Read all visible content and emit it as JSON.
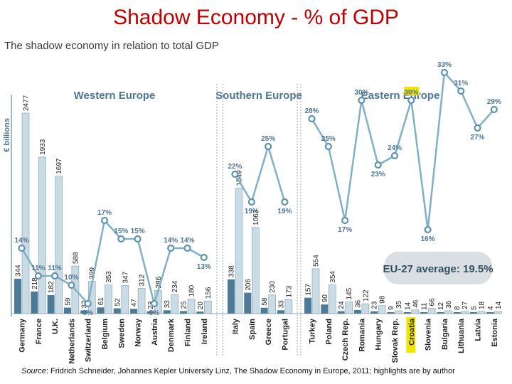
{
  "slide_title": "Shadow Economy - % of GDP",
  "chart_title": "The shadow economy in relation to total GDP",
  "source": {
    "label": "Source",
    "text": ": Fridrich Schneider, Johannes Kepler University Linz, The Shadow Economy in Europe, 2011; highlights are by author"
  },
  "colors": {
    "bar_light": "#c9dce6",
    "bar_dark": "#4d7a96",
    "line": "#7fb0c8",
    "highlight": "#f2e600",
    "header": "#4d7792"
  },
  "chart_data": {
    "type": "bar",
    "title": "The shadow economy in relation to total GDP",
    "ylabel": "€ billions",
    "eu_average_label": "EU-27 average: 19.5%",
    "highlight_country": "Croatia",
    "regions": [
      {
        "name": "Western Europe",
        "countries": [
          {
            "name": "Germany",
            "gdp": 2477,
            "shadow": 344,
            "pct": 14
          },
          {
            "name": "France",
            "gdp": 1933,
            "shadow": 218,
            "pct": 11
          },
          {
            "name": "U.K.",
            "gdp": 1697,
            "shadow": 182,
            "pct": 11
          },
          {
            "name": "Netherlands",
            "gdp": 588,
            "shadow": 59,
            "pct": 10
          },
          {
            "name": "Switzerland",
            "gdp": 399,
            "shadow": 32,
            "pct": 8
          },
          {
            "name": "Belgium",
            "gdp": 353,
            "shadow": 61,
            "pct": 17
          },
          {
            "name": "Sweden",
            "gdp": 347,
            "shadow": 52,
            "pct": 15
          },
          {
            "name": "Norway",
            "gdp": 312,
            "shadow": 47,
            "pct": 15
          },
          {
            "name": "Austria",
            "gdp": 286,
            "shadow": 23,
            "pct": 8
          },
          {
            "name": "Denmark",
            "gdp": 234,
            "shadow": 33,
            "pct": 14
          },
          {
            "name": "Finland",
            "gdp": 180,
            "shadow": 25,
            "pct": 14
          },
          {
            "name": "Ireland",
            "gdp": 156,
            "shadow": 20,
            "pct": 13
          }
        ]
      },
      {
        "name": "Southern Europe",
        "countries": [
          {
            "name": "Italy",
            "gdp": 1549,
            "shadow": 338,
            "pct": 22
          },
          {
            "name": "Spain",
            "gdp": 1063,
            "shadow": 206,
            "pct": 19
          },
          {
            "name": "Greece",
            "gdp": 230,
            "shadow": 58,
            "pct": 25
          },
          {
            "name": "Portugal",
            "gdp": 173,
            "shadow": 33,
            "pct": 19
          }
        ]
      },
      {
        "name": "Eastern Europe",
        "countries": [
          {
            "name": "Turkey",
            "gdp": 554,
            "shadow": 157,
            "pct": 28
          },
          {
            "name": "Poland",
            "gdp": 354,
            "shadow": 90,
            "pct": 25
          },
          {
            "name": "Czech Rep.",
            "gdp": 145,
            "shadow": 24,
            "pct": 17
          },
          {
            "name": "Romania",
            "gdp": 122,
            "shadow": 36,
            "pct": 30
          },
          {
            "name": "Hungary",
            "gdp": 98,
            "shadow": 23,
            "pct": 23
          },
          {
            "name": "Slovak Rep.",
            "gdp": 35,
            "shadow": 9,
            "pct": 24
          },
          {
            "name": "Croatia",
            "gdp": 46,
            "shadow": 14,
            "pct": 30
          },
          {
            "name": "Slovenia",
            "gdp": 66,
            "shadow": 11,
            "pct": 16
          },
          {
            "name": "Bulgaria",
            "gdp": 36,
            "shadow": 12,
            "pct": 33
          },
          {
            "name": "Lithuania",
            "gdp": 27,
            "shadow": 8,
            "pct": 31
          },
          {
            "name": "Latvia",
            "gdp": 18,
            "shadow": 5,
            "pct": 27
          },
          {
            "name": "Estonia",
            "gdp": 14,
            "shadow": 4,
            "pct": 29
          }
        ]
      }
    ]
  }
}
